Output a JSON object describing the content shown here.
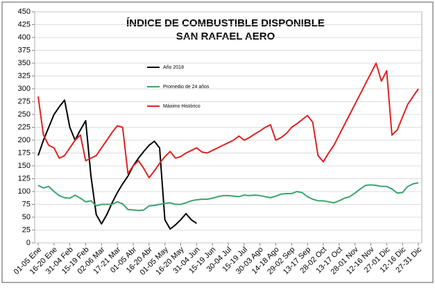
{
  "chart_data": {
    "type": "line",
    "title": [
      "ÍNDICE DE COMBUSTIBLE DISPONIBLE",
      "SAN RAFAEL AERO"
    ],
    "categories": [
      "01-05 Ene",
      null,
      null,
      "16-20 Ene",
      null,
      null,
      "31-04 Feb",
      null,
      null,
      "15-19 Feb",
      null,
      null,
      "02-06 Mar",
      null,
      null,
      "17-21 Mar",
      null,
      null,
      "01-05 Abr",
      null,
      null,
      "16-20 Abr",
      null,
      null,
      "01-05 May",
      null,
      null,
      "16-20 May",
      null,
      null,
      "31-04 Jun",
      null,
      null,
      "15-19 Jun",
      null,
      null,
      "30-04 Jul",
      null,
      null,
      "15-19 Jul",
      null,
      null,
      "30-03 Ago",
      null,
      null,
      "14-18 Ago",
      null,
      null,
      "29-02 Sep",
      null,
      null,
      "13-17 Sep",
      null,
      null,
      "28-02 Oct",
      null,
      null,
      "13-17 Oct",
      null,
      null,
      "28-01 Nov",
      null,
      null,
      "12-16 Nov",
      null,
      null,
      "27-01 Dic",
      null,
      null,
      "12-16 Dic",
      null,
      null,
      "27-31 Dic"
    ],
    "series": [
      {
        "name": "Año 2018",
        "color": "#000000",
        "values": [
          170,
          200,
          225,
          250,
          265,
          278,
          225,
          200,
          220,
          238,
          130,
          55,
          37,
          55,
          78,
          98,
          115,
          130,
          150,
          165,
          178,
          190,
          198,
          185,
          45,
          27,
          35,
          45,
          57,
          45,
          38,
          null,
          null,
          null,
          null,
          null,
          null,
          null,
          null,
          null,
          null,
          null,
          null,
          null,
          null,
          null,
          null,
          null,
          null,
          null,
          null,
          null,
          null,
          null,
          null,
          null,
          null,
          null,
          null,
          null,
          null,
          null,
          null,
          null,
          null,
          null,
          null,
          null,
          null,
          null,
          null,
          null,
          null
        ]
      },
      {
        "name": "Promedio de 24 años",
        "color": "#3aa36b",
        "values": [
          112,
          107,
          110,
          100,
          92,
          88,
          87,
          93,
          87,
          80,
          82,
          72,
          75,
          75,
          75,
          80,
          76,
          65,
          64,
          63,
          64,
          72,
          73,
          75,
          77,
          78,
          75,
          75,
          78,
          82,
          84,
          85,
          85,
          87,
          90,
          92,
          92,
          91,
          90,
          93,
          92,
          93,
          92,
          90,
          88,
          91,
          95,
          96,
          96,
          100,
          98,
          90,
          85,
          82,
          82,
          80,
          78,
          82,
          87,
          90,
          97,
          105,
          112,
          113,
          112,
          110,
          110,
          105,
          97,
          98,
          110,
          115,
          117
        ]
      },
      {
        "name": "Máximo Histórico",
        "color": "#e02020",
        "values": [
          285,
          210,
          190,
          185,
          165,
          170,
          185,
          200,
          210,
          160,
          165,
          170,
          185,
          200,
          215,
          228,
          225,
          135,
          150,
          160,
          145,
          127,
          140,
          155,
          168,
          178,
          165,
          168,
          175,
          180,
          185,
          177,
          175,
          180,
          185,
          190,
          195,
          200,
          208,
          200,
          205,
          212,
          218,
          225,
          230,
          200,
          205,
          213,
          225,
          232,
          240,
          248,
          235,
          170,
          158,
          175,
          190,
          210,
          230,
          250,
          270,
          290,
          310,
          330,
          350,
          315,
          335,
          210,
          220,
          245,
          270,
          285,
          300
        ]
      }
    ],
    "ylim": [
      0,
      450
    ],
    "yticks": [
      0,
      25,
      50,
      75,
      100,
      125,
      150,
      175,
      200,
      225,
      250,
      275,
      300,
      325,
      350,
      375,
      400,
      425,
      450
    ],
    "grid": true
  }
}
